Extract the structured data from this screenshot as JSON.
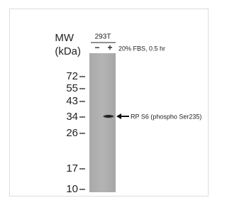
{
  "header": {
    "mw": "MW",
    "unit": "(kDa)",
    "cell_line": "293T"
  },
  "lanes": [
    "−",
    "+"
  ],
  "treatment": "20% FBS, 0.5 hr",
  "markers": [
    "72",
    "55",
    "43",
    "34",
    "26",
    "17",
    "10"
  ],
  "band_label": "RP S6 (phospho Ser235)"
}
